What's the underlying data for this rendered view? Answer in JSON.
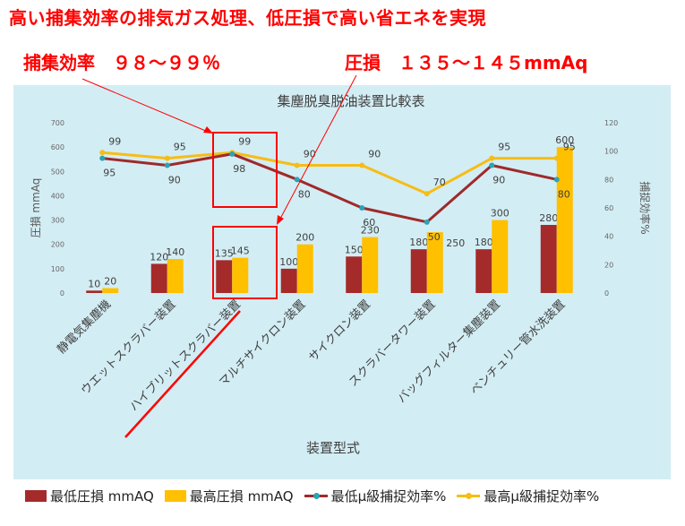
{
  "headline": "高い捕集効率の排気ガス処理、低圧損で高い省エネを実現",
  "efficiency_label": "捕集効率　９８～９９％",
  "pressure_label": "圧損　１３５～１４５mmAq",
  "colors": {
    "annotation": "#ff0000",
    "min_pressure": "#a52a2a",
    "max_pressure": "#ffc000",
    "min_efficiency": "#9e2a2a",
    "max_efficiency": "#f6bd16",
    "panel_bg": "#d3edf4"
  },
  "chart_data": {
    "type": "bar",
    "title": "集塵脱臭脱油装置比較表",
    "xlabel": "装置型式",
    "ylabel": "圧損 mmAq",
    "y2label": "捕捉効率%",
    "ylim": [
      0,
      700
    ],
    "y2lim": [
      0,
      120
    ],
    "yticks": [
      0,
      100,
      200,
      300,
      400,
      500,
      600,
      700
    ],
    "y2ticks": [
      0,
      20,
      40,
      60,
      80,
      100,
      120
    ],
    "categories": [
      "静電気集塵機",
      "ウエットスクラバー装置",
      "ハイブリットスクラバー装置",
      "マルチサイクロン装置",
      "サイクロン装置",
      "スクラバータワー装置",
      "バッグフィルター集塵装置",
      "ベンチュリー管水洗装置"
    ],
    "series": [
      {
        "name": "最低圧損 mmAQ",
        "kind": "bar",
        "axis": "left",
        "values": [
          10,
          120,
          135,
          100,
          150,
          180,
          180,
          280
        ],
        "labels": [
          "10",
          "120",
          "135",
          "100",
          "150",
          "180",
          "180",
          "280"
        ]
      },
      {
        "name": "最高圧損 mmAQ",
        "kind": "bar",
        "axis": "left",
        "values": [
          20,
          140,
          145,
          200,
          230,
          250,
          300,
          600
        ],
        "labels": [
          "20",
          "140",
          "145",
          "200",
          "230",
          "250",
          "300",
          "600"
        ]
      },
      {
        "name": "最低μ級捕捉効率%",
        "kind": "line",
        "axis": "right",
        "values": [
          95,
          90,
          98,
          80,
          60,
          50,
          90,
          80
        ],
        "labels": [
          "95",
          "90",
          "98",
          "80",
          "60",
          "50",
          "90",
          "80"
        ]
      },
      {
        "name": "最高μ級捕捉効率%",
        "kind": "line",
        "axis": "right",
        "values": [
          99,
          95,
          99,
          90,
          90,
          70,
          95,
          95
        ],
        "labels": [
          "99",
          "95",
          "99",
          "90",
          "90",
          "70",
          "95",
          "95"
        ]
      }
    ],
    "legend_position": "bottom",
    "grid": false
  }
}
